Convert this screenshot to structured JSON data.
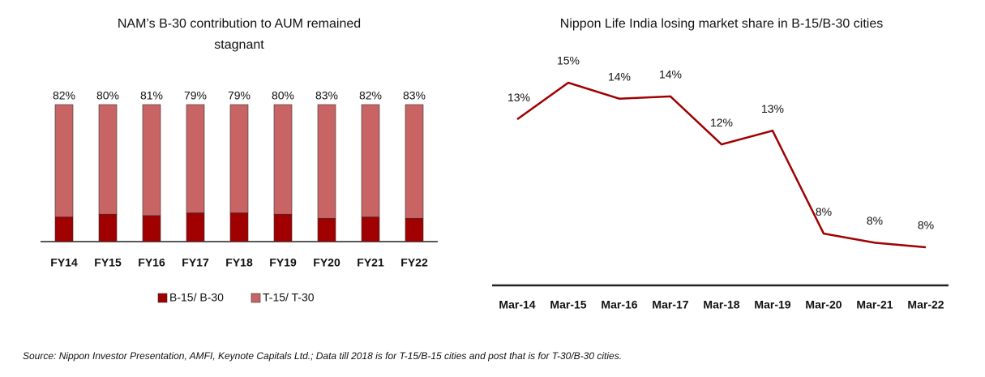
{
  "chart_data": [
    {
      "type": "stacked_bar",
      "title": [
        "NAM’s B-30 contribution to AUM remained",
        "stagnant"
      ],
      "categories": [
        "FY14",
        "FY15",
        "FY16",
        "FY17",
        "FY18",
        "FY19",
        "FY20",
        "FY21",
        "FY22"
      ],
      "series": [
        {
          "name": "B-15/ B-30",
          "color": "#a00000",
          "values": [
            18,
            20,
            19,
            21,
            21,
            20,
            17,
            18,
            17
          ]
        },
        {
          "name": "T-15/ T-30",
          "color": "#c86464",
          "values": [
            82,
            80,
            81,
            79,
            79,
            80,
            83,
            82,
            83
          ],
          "value_labels": [
            "82%",
            "80%",
            "81%",
            "79%",
            "79%",
            "80%",
            "83%",
            "82%",
            "83%"
          ]
        }
      ],
      "legend": "bottom"
    },
    {
      "type": "line",
      "title": "Nippon Life India losing market share in B-15/B-30 cities",
      "categories": [
        "Mar-14",
        "Mar-15",
        "Mar-16",
        "Mar-17",
        "Mar-18",
        "Mar-19",
        "Mar-20",
        "Mar-21",
        "Mar-22"
      ],
      "color": "#a00000",
      "values": [
        13.4,
        15.0,
        14.3,
        14.4,
        12.3,
        12.9,
        8.4,
        8.0,
        7.8
      ],
      "value_labels": [
        "13%",
        "15%",
        "14%",
        "14%",
        "12%",
        "13%",
        "8%",
        "8%",
        "8%"
      ]
    }
  ],
  "source": "Source: Nippon Investor Presentation, AMFI, Keynote Capitals Ltd.; Data till 2018 is for T-15/B-15 cities and post that is for T-30/B-30 cities."
}
